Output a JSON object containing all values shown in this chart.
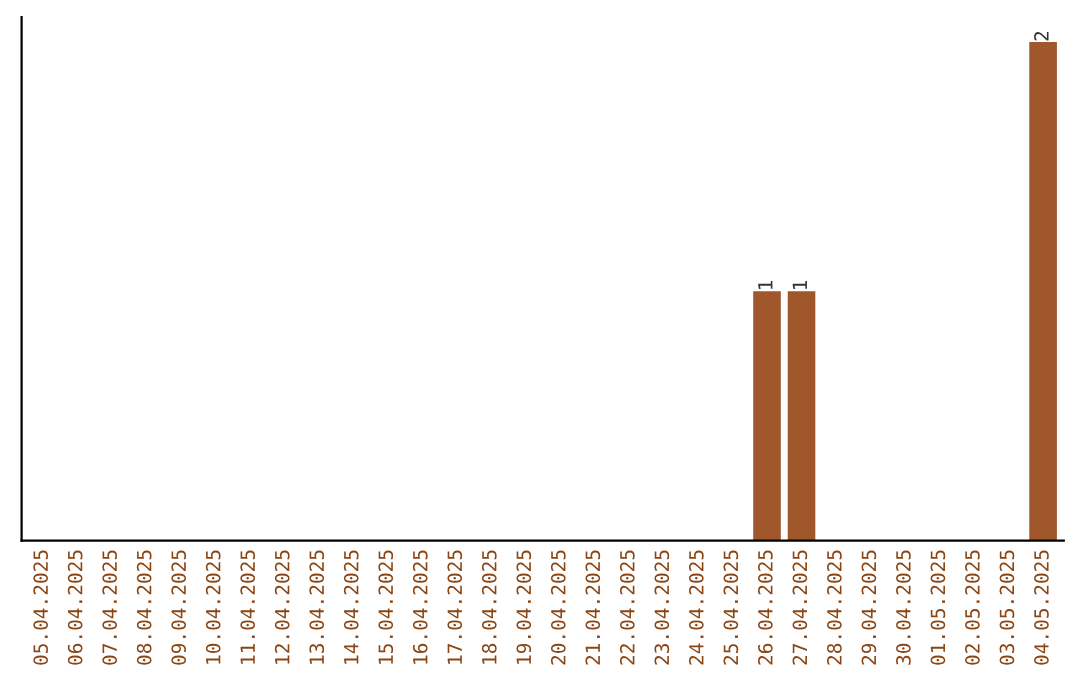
{
  "chart_data": {
    "type": "bar",
    "categories": [
      "05.04.2025",
      "06.04.2025",
      "07.04.2025",
      "08.04.2025",
      "09.04.2025",
      "10.04.2025",
      "11.04.2025",
      "12.04.2025",
      "13.04.2025",
      "14.04.2025",
      "15.04.2025",
      "16.04.2025",
      "17.04.2025",
      "18.04.2025",
      "19.04.2025",
      "20.04.2025",
      "21.04.2025",
      "22.04.2025",
      "23.04.2025",
      "24.04.2025",
      "25.04.2025",
      "26.04.2025",
      "27.04.2025",
      "28.04.2025",
      "29.04.2025",
      "30.04.2025",
      "01.05.2025",
      "02.05.2025",
      "03.05.2025",
      "04.05.2025"
    ],
    "values": [
      null,
      null,
      null,
      null,
      null,
      null,
      null,
      null,
      null,
      null,
      null,
      null,
      null,
      null,
      null,
      null,
      null,
      null,
      null,
      null,
      null,
      1,
      1,
      null,
      null,
      null,
      null,
      null,
      null,
      2
    ],
    "data_labels": true,
    "color": "#a0572b"
  }
}
